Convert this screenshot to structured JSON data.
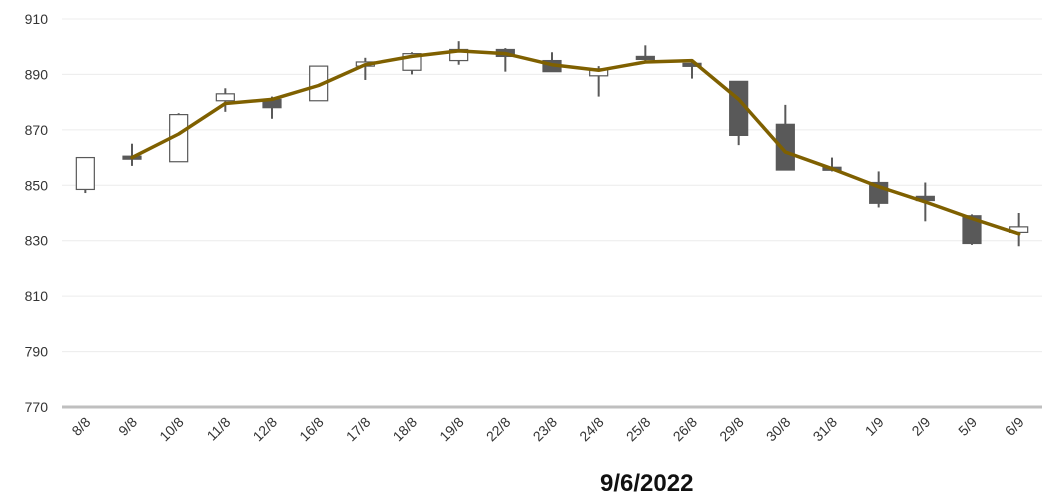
{
  "chart_data": {
    "type": "candlestick",
    "categories": [
      "8/8",
      "9/8",
      "10/8",
      "11/8",
      "12/8",
      "16/8",
      "17/8",
      "18/8",
      "19/8",
      "22/8",
      "23/8",
      "24/8",
      "25/8",
      "26/8",
      "29/8",
      "30/8",
      "31/8",
      "1/9",
      "2/9",
      "5/9",
      "6/9"
    ],
    "ohlc": [
      {
        "open": 848.5,
        "high": 860,
        "low": 847.2,
        "close": 860
      },
      {
        "open": 860.5,
        "high": 865,
        "low": 857,
        "close": 859.5
      },
      {
        "open": 858.5,
        "high": 876,
        "low": 858.5,
        "close": 875.5
      },
      {
        "open": 880.5,
        "high": 885,
        "low": 876.5,
        "close": 883
      },
      {
        "open": 881,
        "high": 882,
        "low": 874,
        "close": 878
      },
      {
        "open": 880.5,
        "high": 893,
        "low": 880.5,
        "close": 893
      },
      {
        "open": 893,
        "high": 896,
        "low": 888,
        "close": 894.5
      },
      {
        "open": 891.5,
        "high": 898,
        "low": 890,
        "close": 897.5
      },
      {
        "open": 895,
        "high": 902,
        "low": 893.5,
        "close": 899
      },
      {
        "open": 899,
        "high": 899.5,
        "low": 891,
        "close": 896.5
      },
      {
        "open": 895,
        "high": 898,
        "low": 891,
        "close": 891
      },
      {
        "open": 889.5,
        "high": 893,
        "low": 882,
        "close": 892
      },
      {
        "open": 896.5,
        "high": 900.5,
        "low": 894.5,
        "close": 895.5
      },
      {
        "open": 894,
        "high": 894.5,
        "low": 888.5,
        "close": 893
      },
      {
        "open": 887.5,
        "high": 887.5,
        "low": 864.5,
        "close": 868
      },
      {
        "open": 872,
        "high": 879,
        "low": 855.5,
        "close": 855.5
      },
      {
        "open": 856.5,
        "high": 860,
        "low": 855,
        "close": 855.5
      },
      {
        "open": 851,
        "high": 855,
        "low": 842,
        "close": 843.5
      },
      {
        "open": 846,
        "high": 851,
        "low": 837,
        "close": 844.5
      },
      {
        "open": 839,
        "high": 839.5,
        "low": 828.5,
        "close": 829
      },
      {
        "open": 833,
        "high": 840,
        "low": 828,
        "close": 835
      }
    ],
    "trend": [
      null,
      860,
      868.5,
      879.5,
      881,
      886,
      893.5,
      896.5,
      898.5,
      897.5,
      893.5,
      891.5,
      894.5,
      895,
      881,
      862,
      856,
      849.5,
      844,
      838,
      832.5
    ],
    "ylim": [
      770,
      910
    ],
    "yticks": [
      770,
      790,
      810,
      830,
      850,
      870,
      890,
      910
    ],
    "grid": true,
    "colors": {
      "up": "#ffffff",
      "down": "#595959",
      "candle_edge": "#595959",
      "trend": "#7f6000"
    },
    "xlabel": "9/6/2022"
  }
}
